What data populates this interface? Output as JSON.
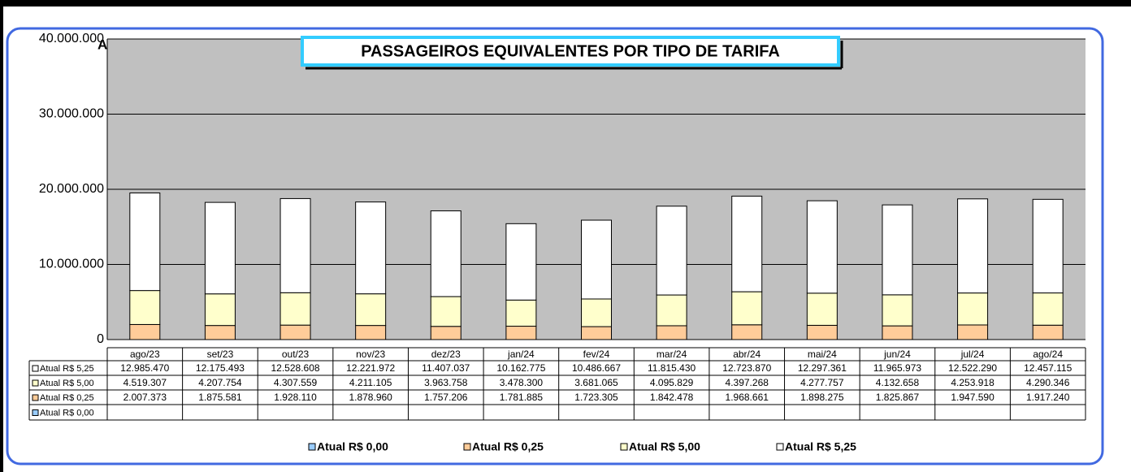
{
  "chart_data": {
    "type": "stacked_bar",
    "title": "PASSAGEIROS EQUIVALENTES POR TIPO DE TARIFA",
    "annotation": "A",
    "categories": [
      "ago/23",
      "set/23",
      "out/23",
      "nov/23",
      "dez/23",
      "jan/24",
      "fev/24",
      "mar/24",
      "abr/24",
      "mai/24",
      "jun/24",
      "jul/24",
      "ago/24"
    ],
    "series": [
      {
        "name": "Atual R$ 0,00",
        "color": "#99ccff",
        "values": [
          null,
          null,
          null,
          null,
          null,
          null,
          null,
          null,
          null,
          null,
          null,
          null,
          null
        ]
      },
      {
        "name": "Atual R$ 0,25",
        "color": "#ffcc99",
        "values": [
          2007373,
          1875581,
          1928110,
          1878960,
          1757206,
          1781885,
          1723305,
          1842478,
          1968661,
          1898275,
          1825867,
          1947590,
          1917240
        ],
        "value_labels": [
          "2.007.373",
          "1.875.581",
          "1.928.110",
          "1.878.960",
          "1.757.206",
          "1.781.885",
          "1.723.305",
          "1.842.478",
          "1.968.661",
          "1.898.275",
          "1.825.867",
          "1.947.590",
          "1.917.240"
        ]
      },
      {
        "name": "Atual R$ 5,00",
        "color": "#ffffcc",
        "values": [
          4519307,
          4207754,
          4307559,
          4211105,
          3963758,
          3478300,
          3681065,
          4095829,
          4397268,
          4277757,
          4132658,
          4253918,
          4290346
        ],
        "value_labels": [
          "4.519.307",
          "4.207.754",
          "4.307.559",
          "4.211.105",
          "3.963.758",
          "3.478.300",
          "3.681.065",
          "4.095.829",
          "4.397.268",
          "4.277.757",
          "4.132.658",
          "4.253.918",
          "4.290.346"
        ]
      },
      {
        "name": "Atual R$ 5,25",
        "color": "#ffffff",
        "values": [
          12985470,
          12175493,
          12528608,
          12221972,
          11407037,
          10162775,
          10486667,
          11815430,
          12723870,
          12297361,
          11965973,
          12522290,
          12457115
        ],
        "value_labels": [
          "12.985.470",
          "12.175.493",
          "12.528.608",
          "12.221.972",
          "11.407.037",
          "10.162.775",
          "10.486.667",
          "11.815.430",
          "12.723.870",
          "12.297.361",
          "11.965.973",
          "12.522.290",
          "12.457.115"
        ]
      }
    ],
    "ylim": [
      0,
      40000000
    ],
    "yticks": [
      0,
      {
        "value": 10000000,
        "label": "10.000.000"
      },
      {
        "value": 20000000,
        "label": "20.000.000"
      },
      {
        "value": 30000000,
        "label": "30.000.000"
      },
      {
        "value": 40000000,
        "label": "40.000.000"
      }
    ],
    "grid": true,
    "plot_background": "#c0c0c0",
    "legend": "bottom"
  }
}
